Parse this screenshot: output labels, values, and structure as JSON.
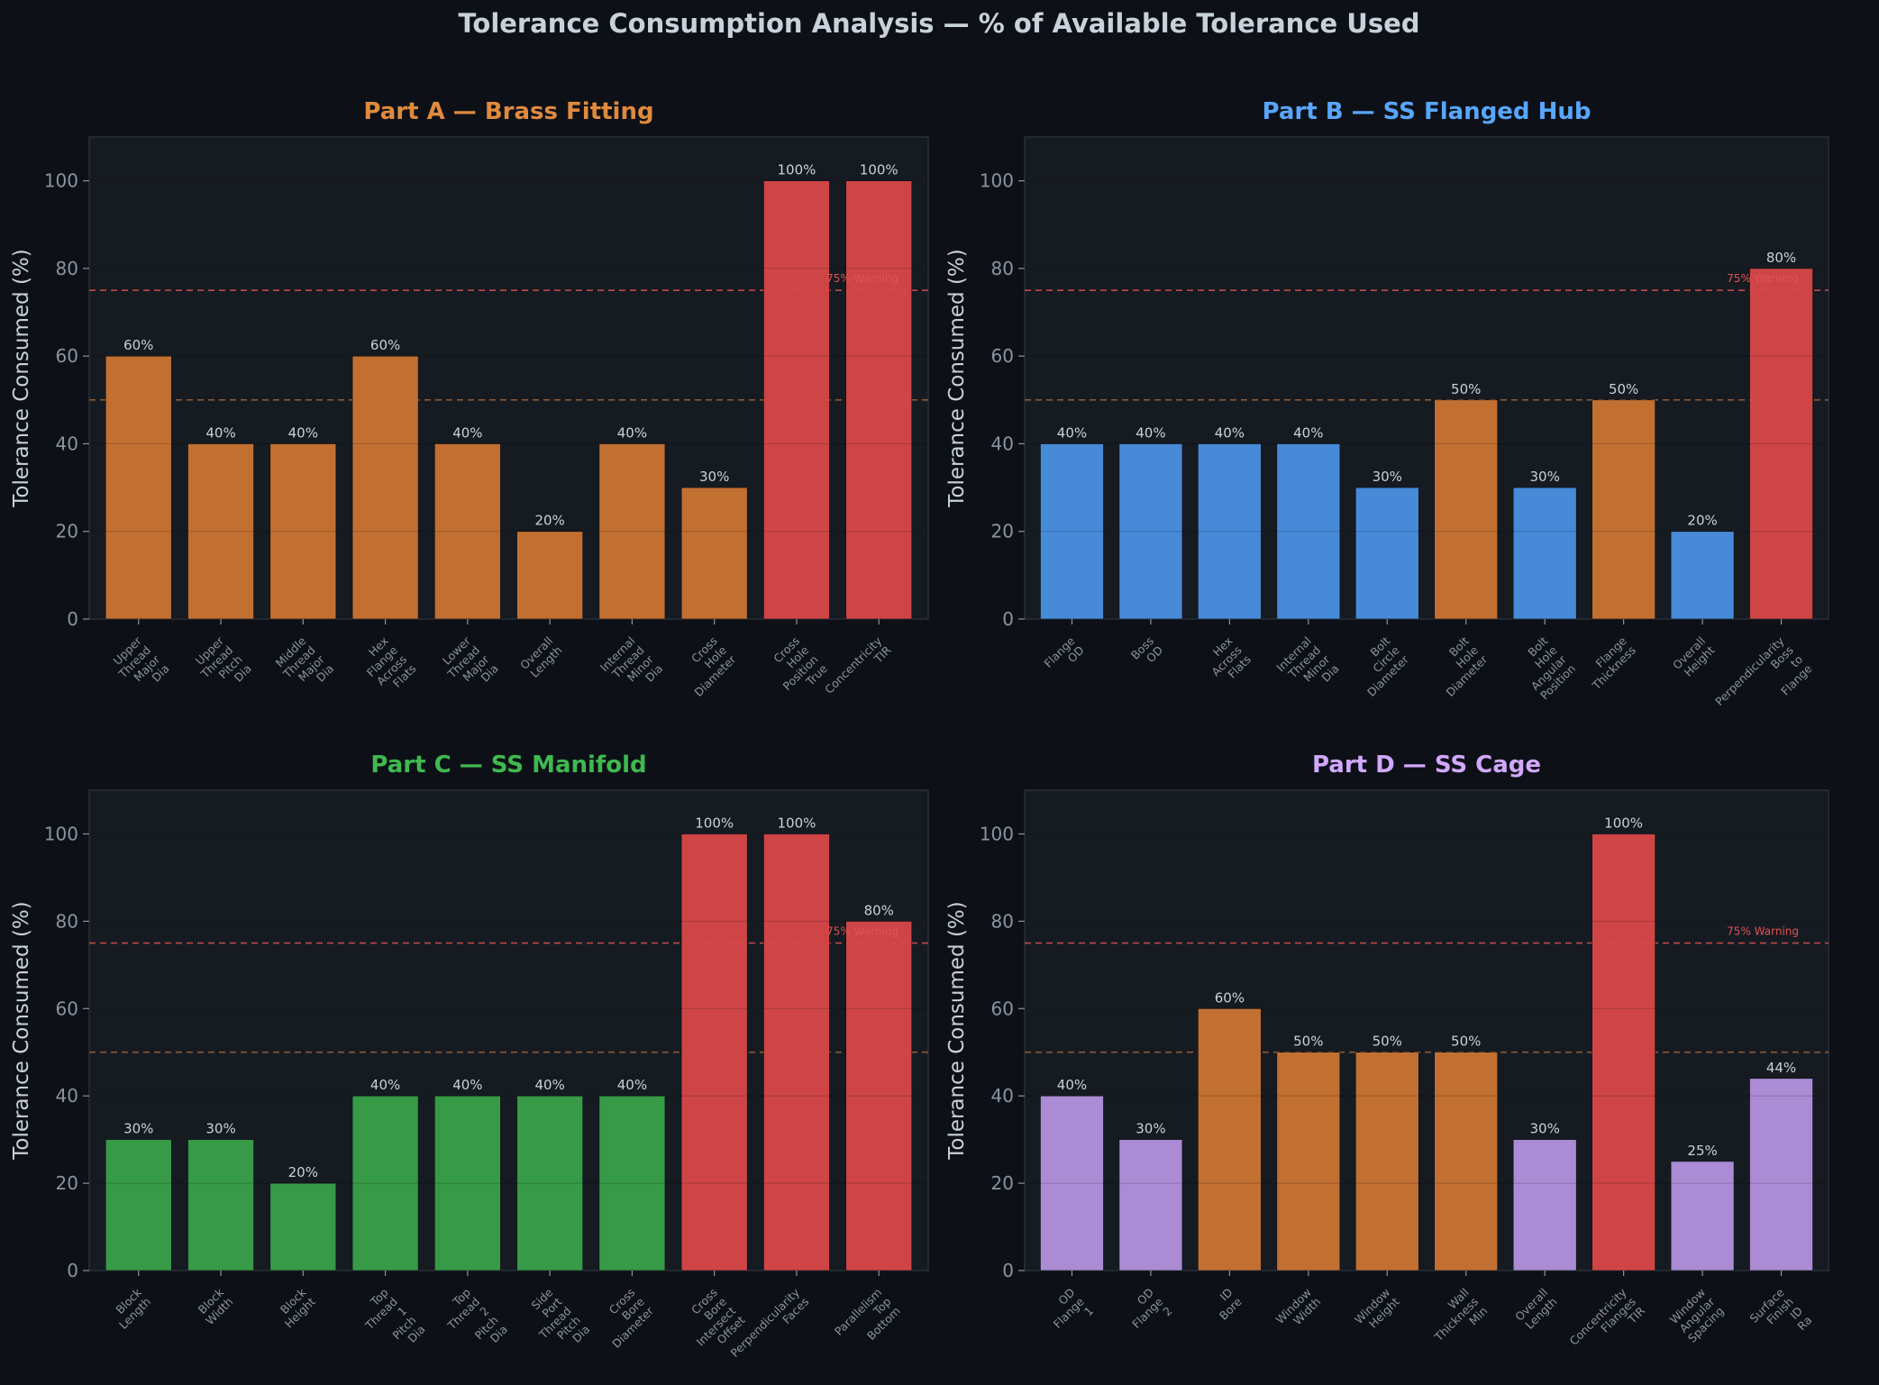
{
  "suptitle": "Tolerance Consumption Analysis — % of Available Tolerance Used",
  "warning_label": "75% Warning",
  "colors": {
    "background": "#0d1117",
    "axes_background": "#161b22",
    "grid": "#2a3038",
    "spine": "#30363d",
    "warning_line": "#d9534f",
    "caution_line": "#8a5a35",
    "orange": "#cc7433",
    "red": "#d94848"
  },
  "chart_data": [
    {
      "type": "bar",
      "title": "Part A — Brass Fitting",
      "title_color": "#e08a3e",
      "series_color": "#cc7433",
      "ylabel": "Tolerance Consumed (%)",
      "ylim": [
        0,
        110
      ],
      "yticks": [
        0,
        20,
        40,
        60,
        80,
        100
      ],
      "warning_threshold": 75,
      "caution_threshold": 50,
      "grid": true,
      "categories": [
        "Upper Thread Major Dia",
        "Upper Thread Pitch Dia",
        "Middle Thread Major Dia",
        "Hex Flange Across Flats",
        "Lower Thread Major Dia",
        "Overall Length",
        "Internal Thread Minor Dia",
        "Cross Hole Diameter",
        "Cross Hole Position True",
        "Concentricity TIR"
      ],
      "values": [
        60,
        40,
        40,
        60,
        40,
        20,
        40,
        30,
        100,
        100
      ],
      "value_labels": [
        "60%",
        "40%",
        "40%",
        "60%",
        "40%",
        "20%",
        "40%",
        "30%",
        "100%",
        "100%"
      ],
      "bar_colors": [
        "#cc7433",
        "#cc7433",
        "#cc7433",
        "#cc7433",
        "#cc7433",
        "#cc7433",
        "#cc7433",
        "#cc7433",
        "#d94848",
        "#d94848"
      ]
    },
    {
      "type": "bar",
      "title": "Part B — SS Flanged Hub",
      "title_color": "#58a6ff",
      "series_color": "#4a90e2",
      "ylabel": "Tolerance Consumed (%)",
      "ylim": [
        0,
        110
      ],
      "yticks": [
        0,
        20,
        40,
        60,
        80,
        100
      ],
      "warning_threshold": 75,
      "caution_threshold": 50,
      "grid": true,
      "categories": [
        "Flange OD",
        "Boss OD",
        "Hex Across Flats",
        "Internal Thread Minor Dia",
        "Bolt Circle Diameter",
        "Bolt Hole Diameter",
        "Bolt Hole Angular Position",
        "Flange Thickness",
        "Overall Height",
        "Perpendicularity Boss to Flange"
      ],
      "values": [
        40,
        40,
        40,
        40,
        30,
        50,
        30,
        50,
        20,
        80
      ],
      "value_labels": [
        "40%",
        "40%",
        "40%",
        "40%",
        "30%",
        "50%",
        "30%",
        "50%",
        "20%",
        "80%"
      ],
      "bar_colors": [
        "#4a90e2",
        "#4a90e2",
        "#4a90e2",
        "#4a90e2",
        "#4a90e2",
        "#cc7433",
        "#4a90e2",
        "#cc7433",
        "#4a90e2",
        "#d94848"
      ]
    },
    {
      "type": "bar",
      "title": "Part C — SS Manifold",
      "title_color": "#3fb950",
      "series_color": "#38a149",
      "ylabel": "Tolerance Consumed (%)",
      "ylim": [
        0,
        110
      ],
      "yticks": [
        0,
        20,
        40,
        60,
        80,
        100
      ],
      "warning_threshold": 75,
      "caution_threshold": 50,
      "grid": true,
      "categories": [
        "Block Length",
        "Block Width",
        "Block Height",
        "Top Thread 1 Pitch Dia",
        "Top Thread 2 Pitch Dia",
        "Side Port Thread Pitch Dia",
        "Cross Bore Diameter",
        "Cross Bore Intersect Offset",
        "Perpendicularity Faces",
        "Parallelism Top Bottom"
      ],
      "values": [
        30,
        30,
        20,
        40,
        40,
        40,
        40,
        100,
        100,
        80
      ],
      "value_labels": [
        "30%",
        "30%",
        "20%",
        "40%",
        "40%",
        "40%",
        "40%",
        "100%",
        "100%",
        "80%"
      ],
      "bar_colors": [
        "#38a149",
        "#38a149",
        "#38a149",
        "#38a149",
        "#38a149",
        "#38a149",
        "#38a149",
        "#d94848",
        "#d94848",
        "#d94848"
      ]
    },
    {
      "type": "bar",
      "title": "Part D — SS Cage",
      "title_color": "#d2a8ff",
      "series_color": "#b391de",
      "ylabel": "Tolerance Consumed (%)",
      "ylim": [
        0,
        110
      ],
      "yticks": [
        0,
        20,
        40,
        60,
        80,
        100
      ],
      "warning_threshold": 75,
      "caution_threshold": 50,
      "grid": true,
      "categories": [
        "OD Flange 1",
        "OD Flange 2",
        "ID Bore",
        "Window Width",
        "Window Height",
        "Wall Thickness Min",
        "Overall Length",
        "Concentricity Flanges TIR",
        "Window Angular Spacing",
        "Surface Finish ID Ra"
      ],
      "values": [
        40,
        30,
        60,
        50,
        50,
        50,
        30,
        100,
        25,
        44
      ],
      "value_labels": [
        "40%",
        "30%",
        "60%",
        "50%",
        "50%",
        "50%",
        "30%",
        "100%",
        "25%",
        "44%"
      ],
      "bar_colors": [
        "#b391de",
        "#b391de",
        "#cc7433",
        "#cc7433",
        "#cc7433",
        "#cc7433",
        "#b391de",
        "#d94848",
        "#b391de",
        "#b391de"
      ]
    }
  ]
}
